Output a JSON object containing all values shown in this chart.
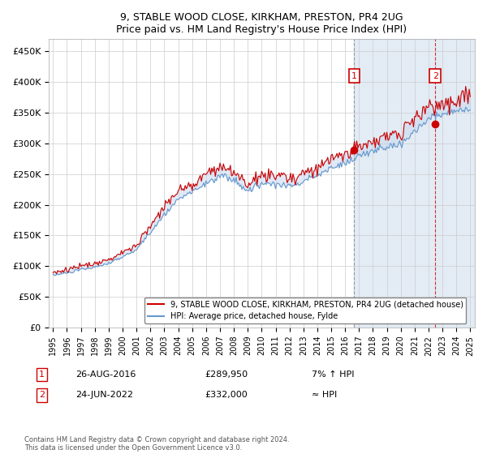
{
  "title": "9, STABLE WOOD CLOSE, KIRKHAM, PRESTON, PR4 2UG",
  "subtitle": "Price paid vs. HM Land Registry's House Price Index (HPI)",
  "ylabel_ticks": [
    "£0",
    "£50K",
    "£100K",
    "£150K",
    "£200K",
    "£250K",
    "£300K",
    "£350K",
    "£400K",
    "£450K"
  ],
  "ytick_values": [
    0,
    50000,
    100000,
    150000,
    200000,
    250000,
    300000,
    350000,
    400000,
    450000
  ],
  "ylim": [
    0,
    470000
  ],
  "xlim_start": 1994.7,
  "xlim_end": 2025.3,
  "line1_color": "#cc0000",
  "line2_color": "#6699cc",
  "fill_color": "#c8d8ee",
  "fill_alpha": 0.55,
  "marker1_date": 2016.65,
  "marker1_value": 289950,
  "marker2_date": 2022.48,
  "marker2_value": 332000,
  "vline1_color": "#888888",
  "vline2_color": "#cc0000",
  "annotation1": {
    "label": "1",
    "date": "26-AUG-2016",
    "price": "£289,950",
    "note": "7% ↑ HPI"
  },
  "annotation2": {
    "label": "2",
    "date": "24-JUN-2022",
    "price": "£332,000",
    "note": "≈ HPI"
  },
  "legend1_text": "9, STABLE WOOD CLOSE, KIRKHAM, PRESTON, PR4 2UG (detached house)",
  "legend2_text": "HPI: Average price, detached house, Fylde",
  "footer": "Contains HM Land Registry data © Crown copyright and database right 2024.\nThis data is licensed under the Open Government Licence v3.0.",
  "background_color": "#ffffff",
  "plot_bg_color": "#ffffff",
  "grid_color": "#cccccc",
  "hpi_anchors": {
    "1995.0": 85000,
    "1996.0": 89000,
    "1997.0": 95000,
    "1998.0": 98000,
    "1999.0": 104000,
    "2000.0": 115000,
    "2001.0": 128000,
    "2002.0": 155000,
    "2003.0": 185000,
    "2004.0": 210000,
    "2005.0": 220000,
    "2006.0": 235000,
    "2007.0": 248000,
    "2008.0": 240000,
    "2009.0": 222000,
    "2010.0": 235000,
    "2011.0": 235000,
    "2012.0": 230000,
    "2013.0": 238000,
    "2014.0": 248000,
    "2015.0": 260000,
    "2016.0": 268000,
    "2017.0": 280000,
    "2018.0": 288000,
    "2019.0": 292000,
    "2020.0": 298000,
    "2021.0": 320000,
    "2022.0": 340000,
    "2023.0": 348000,
    "2024.0": 352000,
    "2025.0": 355000
  },
  "prop_ratio": 1.06,
  "prop_noise_scale": 0.022,
  "hpi_noise_scale": 0.012
}
